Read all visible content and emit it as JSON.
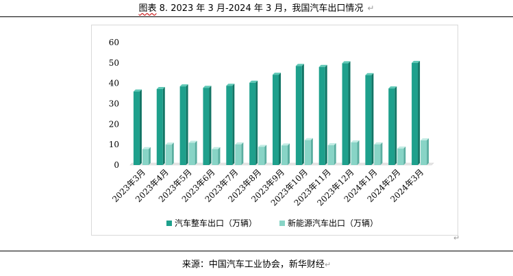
{
  "caption": {
    "prefix": "图表",
    "text": " 8. 2023 年 3 月-2024 年 3 月，我国汽车出口情况",
    "para_mark": "↵"
  },
  "source": {
    "text": "来源：中国汽车工业协会，新华财经",
    "para_mark": "↵"
  },
  "chart_para_mark": "↵",
  "colors": {
    "series1_front": "#1ea08c",
    "series1_side": "#127565",
    "series1_top": "#5fc8b6",
    "series2_front": "#88d4c6",
    "series2_side": "#5aaea0",
    "series2_top": "#c2ece4",
    "floor": "#d0d0d0"
  },
  "chart_data": {
    "type": "bar",
    "title": "",
    "xlabel": "",
    "ylabel": "",
    "ylim": [
      0,
      60
    ],
    "yticks": [
      0,
      10,
      20,
      30,
      40,
      50,
      60
    ],
    "categories": [
      "2023年3月",
      "2023年4月",
      "2023年5月",
      "2023年6月",
      "2023年7月",
      "2023年8月",
      "2023年9月",
      "2023年10月",
      "2023年11月",
      "2023年12月",
      "2024年1月",
      "2024年2月",
      "2024年3月"
    ],
    "series": [
      {
        "name": "汽车整车出口（万辆）",
        "values": [
          36.0,
          37.2,
          38.5,
          37.8,
          38.8,
          40.3,
          44.2,
          48.5,
          48.0,
          49.8,
          44.0,
          37.5,
          50.0
        ]
      },
      {
        "name": "新能源汽车出口（万辆）",
        "values": [
          7.8,
          10.0,
          10.9,
          7.8,
          10.1,
          8.9,
          9.6,
          12.2,
          9.7,
          11.1,
          10.1,
          8.1,
          12.1
        ]
      }
    ],
    "legend_position": "bottom"
  }
}
